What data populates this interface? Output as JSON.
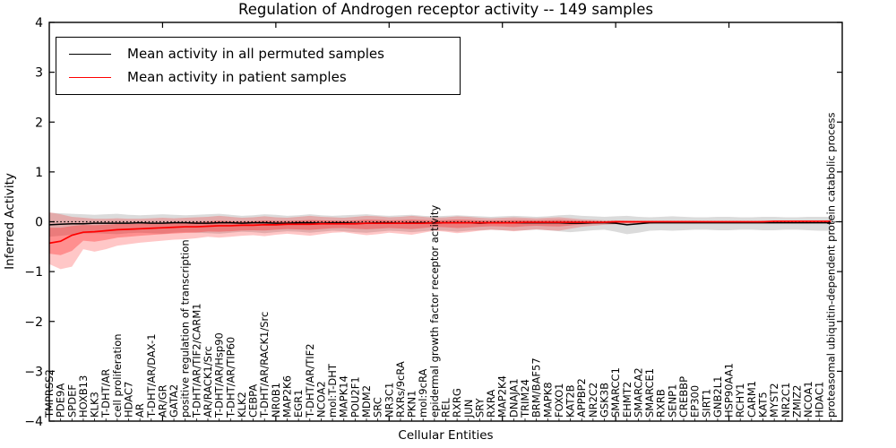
{
  "figure": {
    "title": "Regulation of Androgen receptor activity -- 149 samples",
    "xlabel": "Cellular Entities",
    "ylabel": "Inferred Activity"
  },
  "legend": {
    "entries": [
      {
        "label": "Mean activity in all permuted samples",
        "color": "#000000"
      },
      {
        "label": "Mean activity in patient samples",
        "color": "#ff0000"
      }
    ]
  },
  "chart_data": {
    "type": "line",
    "title": "Regulation of Androgen receptor activity -- 149 samples",
    "xlabel": "Cellular Entities",
    "ylabel": "Inferred Activity",
    "ylim": [
      -4,
      4
    ],
    "ytick_values": [
      4,
      3,
      2,
      1,
      0,
      -1,
      -2,
      -3,
      -4
    ],
    "ytick_labels": [
      "4",
      "3",
      "2",
      "1",
      "0",
      "−1",
      "−2",
      "−3",
      "−4"
    ],
    "xlim": [
      0,
      70
    ],
    "xticks_major": [
      10,
      20,
      30,
      40,
      50,
      60
    ],
    "grid": false,
    "legend_position": "upper left",
    "zero_line": {
      "y": 0,
      "style": "dotted",
      "color": "#000000"
    },
    "categories": [
      "TMPRSS2",
      "PDE9A",
      "SPDEF",
      "HOXB13",
      "KLK3",
      "T-DHT/AR",
      "cell proliferation",
      "HDAC7",
      "AR",
      "T-DHT/AR/DAX-1",
      "AR/GR",
      "GATA2",
      "positive regulation of transcription",
      "T-DHT/AR/TIF2/CARM1",
      "AR/RACK1/Src",
      "T-DHT/AR/Hsp90",
      "T-DHT/AR/TIP60",
      "KLK2",
      "CEBPA",
      "T-DHT/AR/RACK1/Src",
      "NR0B1",
      "MAP2K6",
      "EGR1",
      "T-DHT/AR/TIF2",
      "NCOA2",
      "mol:T-DHT",
      "MAPK14",
      "POU2F1",
      "MDM2",
      "SRC",
      "NR3C1",
      "RXRs/9cRA",
      "PKN1",
      "mol:9cRA",
      "epidermal growth factor receptor activity",
      "REL",
      "RXRG",
      "JUN",
      "SRY",
      "RXRA",
      "MAP2K4",
      "DNAJA1",
      "TRIM24",
      "BRM/BAF57",
      "MAPK8",
      "FOXO1",
      "KAT2B",
      "APPBP2",
      "NR2C2",
      "GSK3B",
      "SMARCC1",
      "EHMT2",
      "SMARCA2",
      "SMARCE1",
      "RXRB",
      "SENP1",
      "CREBBP",
      "EP300",
      "SIRT1",
      "GNB2L1",
      "HSP90AA1",
      "RCHY1",
      "CARM1",
      "KAT5",
      "MYST2",
      "NR2C1",
      "ZMIZ2",
      "NCOA1",
      "HDAC1",
      "proteasomal ubiquitin-dependent protein catabolic process"
    ],
    "series": [
      {
        "name": "Mean activity in all permuted samples",
        "color": "#000000",
        "band_color": "#999999",
        "band_opacity": 0.35,
        "values": [
          -0.06,
          -0.05,
          -0.04,
          -0.04,
          -0.03,
          -0.03,
          -0.03,
          -0.03,
          -0.02,
          -0.03,
          -0.03,
          -0.02,
          -0.02,
          -0.03,
          -0.03,
          -0.02,
          -0.02,
          -0.03,
          -0.02,
          -0.02,
          -0.03,
          -0.03,
          -0.02,
          -0.02,
          -0.03,
          -0.02,
          -0.02,
          -0.03,
          -0.03,
          -0.02,
          -0.02,
          -0.03,
          -0.02,
          -0.02,
          -0.03,
          -0.02,
          -0.02,
          -0.02,
          -0.03,
          -0.02,
          -0.02,
          -0.02,
          -0.02,
          -0.02,
          -0.02,
          -0.02,
          -0.03,
          -0.03,
          -0.02,
          -0.02,
          -0.03,
          -0.06,
          -0.04,
          -0.02,
          -0.02,
          -0.02,
          -0.02,
          -0.02,
          -0.02,
          -0.02,
          -0.02,
          -0.02,
          -0.02,
          -0.02,
          -0.02,
          -0.02,
          -0.02,
          -0.02,
          -0.02,
          -0.02
        ],
        "band_upper": [
          0.18,
          0.17,
          0.16,
          0.15,
          0.14,
          0.15,
          0.16,
          0.14,
          0.13,
          0.14,
          0.15,
          0.14,
          0.13,
          0.14,
          0.15,
          0.16,
          0.14,
          0.12,
          0.13,
          0.15,
          0.14,
          0.12,
          0.13,
          0.15,
          0.13,
          0.12,
          0.13,
          0.14,
          0.15,
          0.13,
          0.12,
          0.13,
          0.14,
          0.12,
          0.11,
          0.12,
          0.13,
          0.12,
          0.11,
          0.1,
          0.11,
          0.12,
          0.11,
          0.1,
          0.11,
          0.13,
          0.14,
          0.12,
          0.11,
          0.1,
          0.11,
          0.12,
          0.1,
          0.09,
          0.1,
          0.11,
          0.1,
          0.09,
          0.09,
          0.1,
          0.1,
          0.09,
          0.09,
          0.1,
          0.1,
          0.09,
          0.09,
          0.1,
          0.1,
          0.1
        ],
        "band_lower": [
          -0.3,
          -0.28,
          -0.26,
          -0.24,
          -0.23,
          -0.24,
          -0.25,
          -0.23,
          -0.22,
          -0.23,
          -0.24,
          -0.22,
          -0.21,
          -0.22,
          -0.23,
          -0.24,
          -0.22,
          -0.2,
          -0.21,
          -0.23,
          -0.21,
          -0.19,
          -0.2,
          -0.22,
          -0.2,
          -0.18,
          -0.19,
          -0.21,
          -0.22,
          -0.2,
          -0.18,
          -0.19,
          -0.21,
          -0.19,
          -0.17,
          -0.18,
          -0.2,
          -0.18,
          -0.17,
          -0.16,
          -0.17,
          -0.18,
          -0.17,
          -0.16,
          -0.17,
          -0.19,
          -0.21,
          -0.19,
          -0.17,
          -0.16,
          -0.2,
          -0.25,
          -0.22,
          -0.18,
          -0.17,
          -0.18,
          -0.17,
          -0.16,
          -0.16,
          -0.17,
          -0.17,
          -0.16,
          -0.16,
          -0.17,
          -0.17,
          -0.16,
          -0.16,
          -0.17,
          -0.18,
          -0.18
        ]
      },
      {
        "name": "Mean activity in patient samples",
        "color": "#ff0000",
        "band_color": "#ff0000",
        "band_opacity": 0.22,
        "inner_band_scale": 0.5,
        "inner_band_opacity": 0.28,
        "values": [
          -0.43,
          -0.39,
          -0.27,
          -0.21,
          -0.2,
          -0.18,
          -0.16,
          -0.15,
          -0.14,
          -0.13,
          -0.12,
          -0.11,
          -0.1,
          -0.1,
          -0.09,
          -0.08,
          -0.08,
          -0.07,
          -0.07,
          -0.06,
          -0.06,
          -0.05,
          -0.05,
          -0.05,
          -0.04,
          -0.04,
          -0.04,
          -0.04,
          -0.03,
          -0.03,
          -0.03,
          -0.03,
          -0.03,
          -0.03,
          -0.02,
          -0.02,
          -0.02,
          -0.02,
          -0.02,
          -0.02,
          -0.02,
          -0.02,
          -0.01,
          -0.01,
          -0.01,
          -0.01,
          -0.01,
          -0.01,
          -0.01,
          -0.01,
          0.0,
          0.0,
          0.0,
          0.0,
          0.0,
          0.0,
          0.0,
          0.0,
          0.0,
          0.0,
          0.0,
          0.0,
          0.0,
          0.0,
          0.01,
          0.01,
          0.01,
          0.01,
          0.01,
          0.01
        ],
        "band_upper": [
          0.19,
          0.15,
          0.1,
          0.08,
          0.06,
          0.06,
          0.07,
          0.06,
          0.06,
          0.07,
          0.08,
          0.07,
          0.08,
          0.09,
          0.1,
          0.12,
          0.1,
          0.08,
          0.09,
          0.11,
          0.09,
          0.08,
          0.1,
          0.12,
          0.1,
          0.09,
          0.08,
          0.1,
          0.12,
          0.11,
          0.09,
          0.1,
          0.12,
          0.1,
          0.08,
          0.09,
          0.11,
          0.1,
          0.08,
          0.07,
          0.08,
          0.09,
          0.08,
          0.07,
          0.08,
          0.09,
          0.07,
          0.05,
          0.04,
          0.03,
          0.03,
          0.02,
          0.02,
          0.02,
          0.02,
          0.02,
          0.02,
          0.02,
          0.01,
          0.01,
          0.01,
          0.01,
          0.01,
          0.02,
          0.02,
          0.02,
          0.02,
          0.02,
          0.02,
          0.02
        ],
        "band_lower": [
          -0.85,
          -0.95,
          -0.9,
          -0.55,
          -0.6,
          -0.55,
          -0.48,
          -0.45,
          -0.42,
          -0.4,
          -0.38,
          -0.36,
          -0.35,
          -0.33,
          -0.3,
          -0.32,
          -0.3,
          -0.28,
          -0.27,
          -0.29,
          -0.26,
          -0.24,
          -0.26,
          -0.28,
          -0.25,
          -0.22,
          -0.21,
          -0.24,
          -0.27,
          -0.25,
          -0.22,
          -0.24,
          -0.26,
          -0.22,
          -0.18,
          -0.2,
          -0.23,
          -0.21,
          -0.18,
          -0.16,
          -0.17,
          -0.19,
          -0.17,
          -0.15,
          -0.17,
          -0.18,
          -0.14,
          -0.1,
          -0.08,
          -0.06,
          -0.05,
          -0.04,
          -0.04,
          -0.04,
          -0.03,
          -0.03,
          -0.03,
          -0.03,
          -0.02,
          -0.02,
          -0.02,
          -0.02,
          -0.02,
          -0.03,
          -0.03,
          -0.03,
          -0.03,
          -0.03,
          -0.02,
          -0.02
        ]
      }
    ]
  }
}
